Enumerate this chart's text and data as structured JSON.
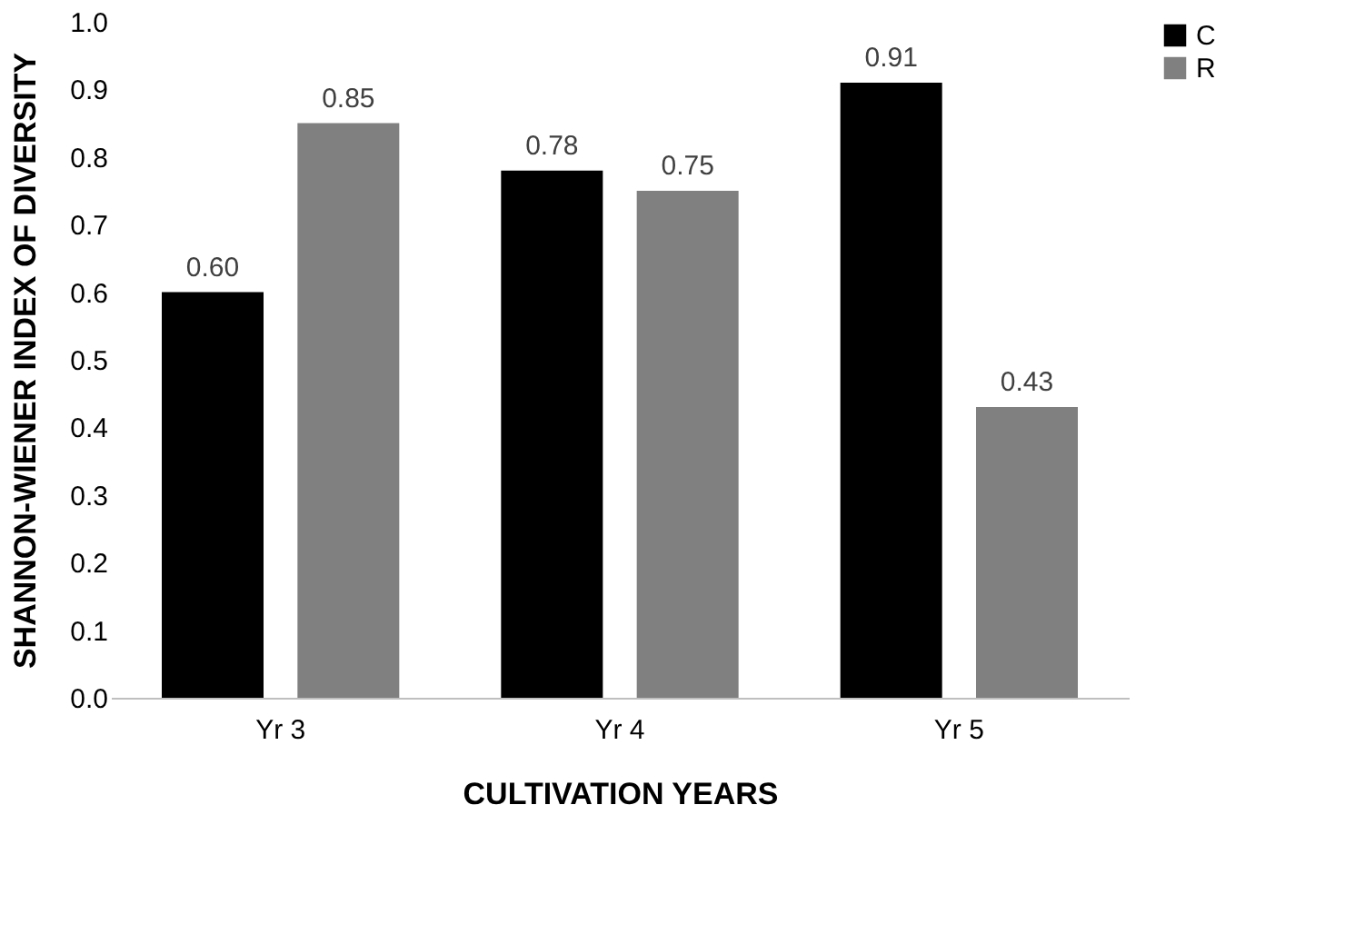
{
  "chart_data": {
    "type": "bar",
    "xlabel": "CULTIVATION YEARS",
    "ylabel": "SHANNON-WIENER INDEX OF DIVERSITY",
    "categories": [
      "Yr 3",
      "Yr 4",
      "Yr 5"
    ],
    "series": [
      {
        "name": "C",
        "color": "#000000",
        "values": [
          0.6,
          0.78,
          0.91
        ],
        "value_labels": [
          "0.60",
          "0.78",
          "0.91"
        ]
      },
      {
        "name": "R",
        "color": "#808080",
        "values": [
          0.85,
          0.75,
          0.43
        ],
        "value_labels": [
          "0.85",
          "0.75",
          "0.43"
        ]
      }
    ],
    "ylim": [
      0,
      1.0
    ],
    "yticks": [
      {
        "value": 0,
        "label": "0.0"
      },
      0.1,
      0.2,
      0.3,
      0.4,
      0.5,
      0.6,
      0.7,
      0.8,
      0.9,
      {
        "value": 1.0,
        "label": "1.0"
      }
    ],
    "grid": false,
    "legend": "right"
  }
}
